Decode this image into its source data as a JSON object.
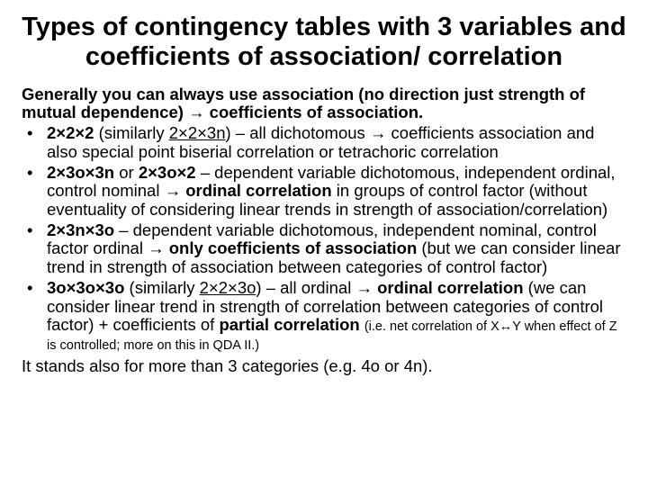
{
  "title": "Types of contingency tables with 3 variables and coefficients of association/ correlation",
  "intro_plain1": "Generally you can always use association (no direction just strength of mutual dependence) → ",
  "intro_bold1": "coefficients of association.",
  "b1_bold1": "2×2×2",
  "b1_plain1": " (similarly ",
  "b1_u1": "2×2×3n",
  "b1_plain2": ") – all dichotomous  → coefficients association and also special point biserial correlation or tetrachoric correlation",
  "b2_bold1": "2×3o×3n",
  "b2_plain1": " or ",
  "b2_bold2": "2×3o×2",
  "b2_plain2": " – dependent variable dichotomous, independent  ordinal, control nominal → ",
  "b2_bold3": "ordinal correlation",
  "b2_plain3": " in groups of control factor (without eventuality of considering linear trends in strength of association/correlation)",
  "b3_bold1": "2×3n×3o",
  "b3_plain1": " – dependent variable dichotomous, independent nominal, control factor ordinal → ",
  "b3_bold2": "only coefficients of association",
  "b3_plain2": " (but we can consider linear trend in strength of association between categories of control factor)",
  "b4_bold1": "3o×3o×3o",
  "b4_plain1": " (similarly ",
  "b4_u1": "2×2×3o",
  "b4_plain2": ") – all ordinal → ",
  "b4_bold2": "ordinal correlation",
  "b4_plain3": " (we can consider linear trend in strength of correlation between categories of control factor) + coefficients of ",
  "b4_bold3": "partial correlation",
  "b4_plain4": " ",
  "b4_small": "(i.e. net correlation of X↔Y when effect of Z is controlled; more on this in QDA II.)",
  "outro": "It stands also for more than 3 categories (e.g. 4o or 4n)."
}
